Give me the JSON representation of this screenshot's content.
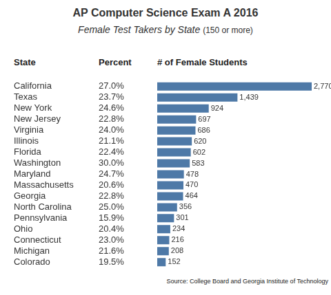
{
  "chart_data": {
    "type": "bar",
    "orientation": "horizontal",
    "title": "AP Computer Science Exam A 2016",
    "subtitle": "Female Test Takers by State (150 or more)",
    "column_headers": [
      "State",
      "Percent",
      "# of Female Students"
    ],
    "categories": [
      "California",
      "Texas",
      "New York",
      "New Jersey",
      "Virginia",
      "Illinois",
      "Florida",
      "Washington",
      "Maryland",
      "Massachusetts",
      "Georgia",
      "North Carolina",
      "Pennsylvania",
      "Ohio",
      "Connecticut",
      "Michigan",
      "Colorado"
    ],
    "values": [
      2770,
      1439,
      924,
      697,
      686,
      620,
      602,
      583,
      478,
      470,
      464,
      356,
      301,
      234,
      216,
      208,
      152
    ],
    "value_labels": [
      "2,770",
      "1,439",
      "924",
      "697",
      "686",
      "620",
      "602",
      "583",
      "478",
      "470",
      "464",
      "356",
      "301",
      "234",
      "216",
      "208",
      "152"
    ],
    "percent_labels": [
      "27.0%",
      "23.7%",
      "24.6%",
      "22.8%",
      "24.0%",
      "21.1%",
      "22.4%",
      "30.0%",
      "24.7%",
      "20.6%",
      "22.8%",
      "25.0%",
      "15.9%",
      "20.4%",
      "23.0%",
      "21.6%",
      "19.5%"
    ],
    "color": "#4e79a7",
    "data_labels": true,
    "tick_labels": "y",
    "grid": false,
    "source": "Source: College Board and Georgia Institute of Technology"
  }
}
